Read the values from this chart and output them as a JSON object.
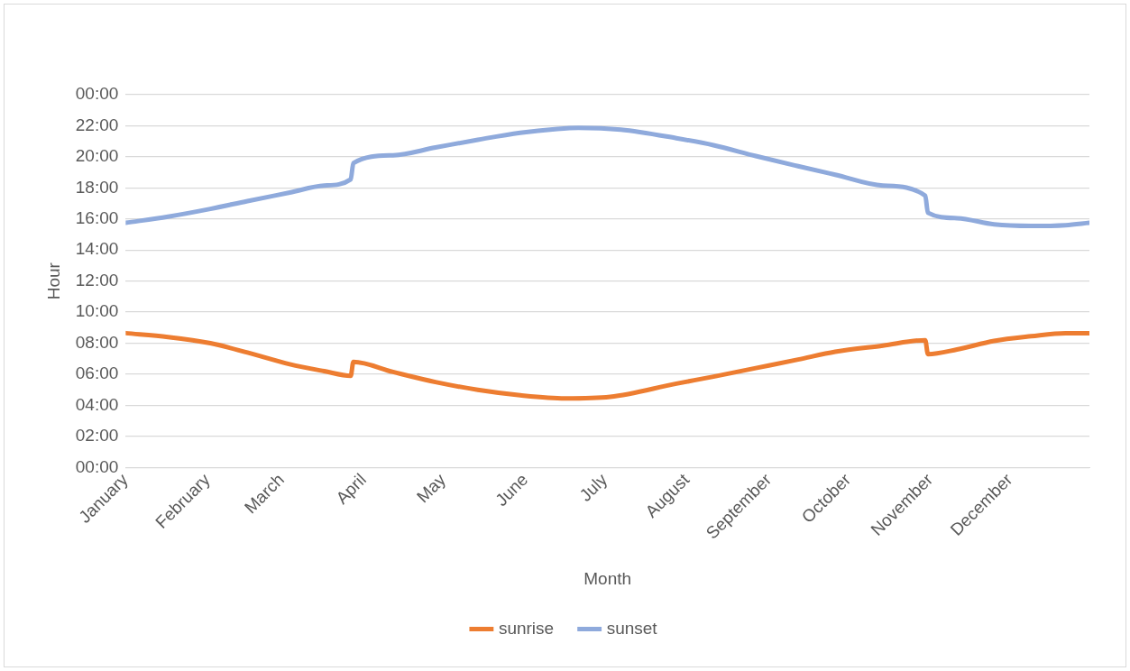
{
  "chart_data": {
    "type": "line",
    "xlabel": "Month",
    "ylabel": "Hour",
    "xlim": [
      "--01-01",
      "--12-31"
    ],
    "xticks": [
      {
        "value": "--01-01",
        "label": "January"
      },
      {
        "value": "--02-01",
        "label": "February"
      },
      {
        "value": "--03-01",
        "label": "March"
      },
      {
        "value": "--04-01",
        "label": "April"
      },
      {
        "value": "--05-01",
        "label": "May"
      },
      {
        "value": "--06-01",
        "label": "June"
      },
      {
        "value": "--07-01",
        "label": "July"
      },
      {
        "value": "--08-01",
        "label": "August"
      },
      {
        "value": "--09-01",
        "label": "September"
      },
      {
        "value": "--10-01",
        "label": "October"
      },
      {
        "value": "--11-01",
        "label": "November"
      },
      {
        "value": "--12-01",
        "label": "December"
      }
    ],
    "ylim": [
      0,
      24
    ],
    "yticks": [
      {
        "value": 0,
        "label": "00:00"
      },
      {
        "value": 2,
        "label": "02:00"
      },
      {
        "value": 4,
        "label": "04:00"
      },
      {
        "value": 6,
        "label": "06:00"
      },
      {
        "value": 8,
        "label": "08:00"
      },
      {
        "value": 10,
        "label": "10:00"
      },
      {
        "value": 12,
        "label": "12:00"
      },
      {
        "value": 14,
        "label": "14:00"
      },
      {
        "value": 16,
        "label": "16:00"
      },
      {
        "value": 18,
        "label": "18:00"
      },
      {
        "value": 20,
        "label": "20:00"
      },
      {
        "value": 22,
        "label": "22:00"
      },
      {
        "value": 24,
        "label": "00:00"
      }
    ],
    "grid": "y",
    "legend": "bottom",
    "marker": "none",
    "line_style": "solid",
    "series": [
      {
        "name": "sunrise",
        "color": "#ed7d31",
        "x": [
          "--01-01",
          "--01-17",
          "--02-02",
          "--02-16",
          "--03-04",
          "--03-17",
          "--03-27",
          "--03-28",
          "--04-12",
          "--04-28",
          "--05-14",
          "--05-30",
          "--06-16",
          "--07-03",
          "--07-28",
          "--08-11",
          "--08-27",
          "--09-12",
          "--09-26",
          "--10-14",
          "--10-30",
          "--10-31",
          "--11-11",
          "--11-25",
          "--12-09",
          "--12-22",
          "--12-31"
        ],
        "values": [
          8.65,
          8.4,
          8.0,
          7.4,
          6.65,
          6.2,
          5.9,
          6.8,
          6.15,
          5.5,
          5.0,
          4.65,
          4.45,
          4.55,
          5.4,
          5.85,
          6.4,
          6.95,
          7.45,
          7.85,
          8.2,
          7.3,
          7.6,
          8.15,
          8.45,
          8.65,
          8.65
        ]
      },
      {
        "name": "sunset",
        "color": "#8faadc",
        "x": [
          "--01-01",
          "--01-17",
          "--02-02",
          "--02-16",
          "--03-04",
          "--03-17",
          "--03-27",
          "--03-28",
          "--04-12",
          "--04-28",
          "--05-14",
          "--05-30",
          "--06-13",
          "--06-21",
          "--07-07",
          "--07-28",
          "--08-11",
          "--08-27",
          "--09-12",
          "--09-26",
          "--10-14",
          "--10-30",
          "--10-31",
          "--11-11",
          "--11-25",
          "--12-09",
          "--12-22",
          "--12-31"
        ],
        "values": [
          15.75,
          16.15,
          16.65,
          17.15,
          17.7,
          18.15,
          18.55,
          19.6,
          20.1,
          20.6,
          21.1,
          21.55,
          21.8,
          21.87,
          21.75,
          21.2,
          20.75,
          20.05,
          19.4,
          18.85,
          18.15,
          17.5,
          16.4,
          16.05,
          15.65,
          15.55,
          15.6,
          15.75
        ]
      }
    ]
  }
}
